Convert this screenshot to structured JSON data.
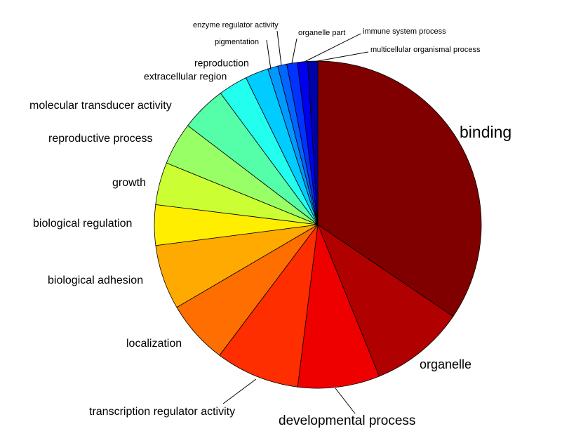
{
  "chart_data": {
    "type": "pie",
    "categories": [
      "binding",
      "organelle",
      "developmental process",
      "transcription regulator activity",
      "localization",
      "biological adhesion",
      "biological regulation",
      "growth",
      "reproductive process",
      "molecular transducer activity",
      "extracellular region",
      "reproduction",
      "pigmentation",
      "enzyme regulator activity",
      "organelle part",
      "immune system process",
      "multicellular organismal process"
    ],
    "values": [
      34.5,
      9.4,
      8.1,
      8.3,
      6.3,
      6.4,
      4.0,
      4.2,
      4.2,
      4.5,
      2.9,
      2.3,
      1.0,
      0.9,
      1.05,
      1.0,
      1.0
    ],
    "colors": [
      "#800000",
      "#b00000",
      "#ee0000",
      "#ff2e00",
      "#ff6e00",
      "#ffaa00",
      "#ffee00",
      "#ccff33",
      "#99ff66",
      "#55ffaa",
      "#22ffee",
      "#00ccff",
      "#0099ff",
      "#0066ff",
      "#0033ff",
      "#0000ee",
      "#0000a8"
    ],
    "start_angle": "top",
    "direction": "clockwise"
  }
}
